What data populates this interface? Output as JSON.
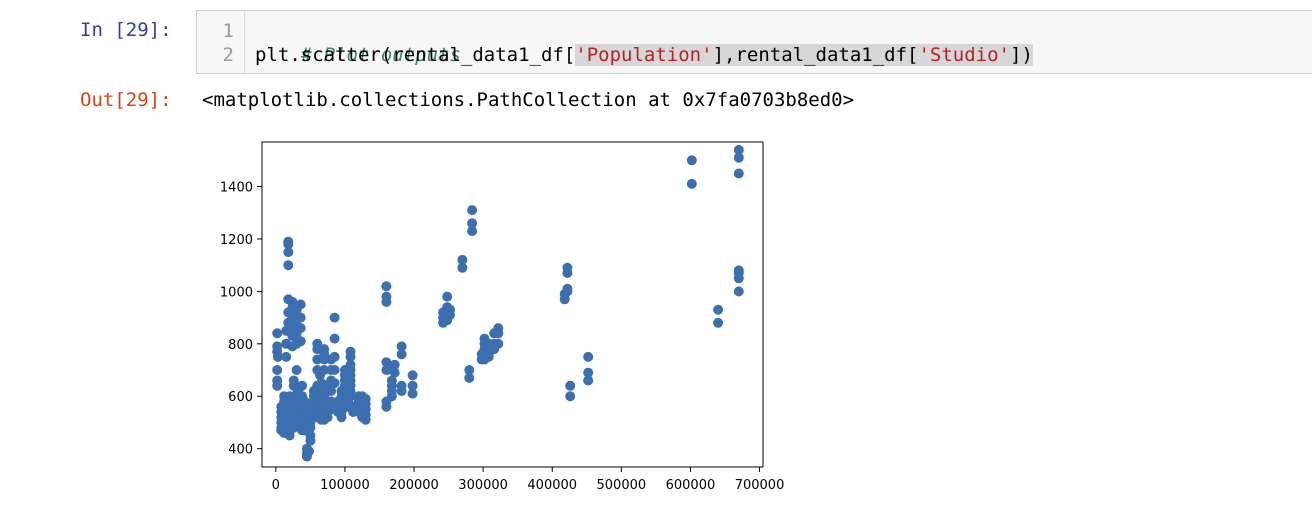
{
  "input_cell": {
    "prompt": "In [29]:",
    "lines": [
      {
        "number": "1",
        "comment": "# Plot outputs"
      },
      {
        "number": "2",
        "parts": [
          "plt.scatter(rental_data1_df[",
          "'Population'",
          "],rental_data1_df[",
          "'Studio'",
          "])"
        ]
      }
    ]
  },
  "output_cell": {
    "prompt": "Out[29]:",
    "text": "<matplotlib.collections.PathCollection at 0x7fa0703b8ed0>"
  },
  "colors": {
    "marker": "#3b6fb0",
    "string": "#ba2121",
    "comment": "#408080"
  },
  "chart_data": {
    "type": "scatter",
    "title": "",
    "xlabel": "",
    "ylabel": "",
    "xlim": [
      -20000,
      705000
    ],
    "ylim": [
      330,
      1570
    ],
    "xticks": [
      0,
      100000,
      200000,
      300000,
      400000,
      500000,
      600000,
      700000
    ],
    "yticks": [
      400,
      600,
      800,
      1000,
      1200,
      1400
    ],
    "grid": false,
    "points": [
      [
        2000,
        840
      ],
      [
        2000,
        790
      ],
      [
        2000,
        770
      ],
      [
        2000,
        700
      ],
      [
        2000,
        660
      ],
      [
        2000,
        640
      ],
      [
        3000,
        750
      ],
      [
        8000,
        560
      ],
      [
        8000,
        540
      ],
      [
        8000,
        520
      ],
      [
        8000,
        500
      ],
      [
        8000,
        480
      ],
      [
        8000,
        470
      ],
      [
        12000,
        600
      ],
      [
        12000,
        580
      ],
      [
        12000,
        560
      ],
      [
        12000,
        540
      ],
      [
        12000,
        520
      ],
      [
        12000,
        500
      ],
      [
        12000,
        480
      ],
      [
        12000,
        460
      ],
      [
        15000,
        850
      ],
      [
        15000,
        800
      ],
      [
        15000,
        750
      ],
      [
        18000,
        1190
      ],
      [
        18000,
        1180
      ],
      [
        18000,
        1150
      ],
      [
        18000,
        1100
      ],
      [
        18000,
        970
      ],
      [
        18000,
        920
      ],
      [
        18000,
        880
      ],
      [
        18000,
        850
      ],
      [
        20000,
        600
      ],
      [
        20000,
        570
      ],
      [
        20000,
        550
      ],
      [
        20000,
        520
      ],
      [
        20000,
        500
      ],
      [
        20000,
        470
      ],
      [
        20000,
        450
      ],
      [
        24000,
        960
      ],
      [
        24000,
        940
      ],
      [
        24000,
        900
      ],
      [
        24000,
        870
      ],
      [
        24000,
        830
      ],
      [
        24000,
        790
      ],
      [
        26000,
        660
      ],
      [
        26000,
        640
      ],
      [
        26000,
        600
      ],
      [
        26000,
        580
      ],
      [
        26000,
        540
      ],
      [
        26000,
        520
      ],
      [
        26000,
        500
      ],
      [
        26000,
        480
      ],
      [
        30000,
        930
      ],
      [
        30000,
        910
      ],
      [
        30000,
        870
      ],
      [
        30000,
        840
      ],
      [
        30000,
        800
      ],
      [
        30000,
        700
      ],
      [
        32000,
        620
      ],
      [
        32000,
        590
      ],
      [
        32000,
        570
      ],
      [
        32000,
        540
      ],
      [
        32000,
        510
      ],
      [
        32000,
        490
      ],
      [
        36000,
        950
      ],
      [
        36000,
        900
      ],
      [
        36000,
        860
      ],
      [
        36000,
        810
      ],
      [
        38000,
        640
      ],
      [
        38000,
        600
      ],
      [
        38000,
        560
      ],
      [
        38000,
        530
      ],
      [
        38000,
        500
      ],
      [
        38000,
        470
      ],
      [
        42000,
        580
      ],
      [
        42000,
        550
      ],
      [
        42000,
        520
      ],
      [
        42000,
        490
      ],
      [
        42000,
        470
      ],
      [
        45000,
        400
      ],
      [
        45000,
        380
      ],
      [
        45000,
        370
      ],
      [
        48000,
        390
      ],
      [
        50000,
        560
      ],
      [
        50000,
        540
      ],
      [
        50000,
        520
      ],
      [
        50000,
        500
      ],
      [
        50000,
        480
      ],
      [
        50000,
        450
      ],
      [
        50000,
        430
      ],
      [
        55000,
        620
      ],
      [
        55000,
        600
      ],
      [
        55000,
        580
      ],
      [
        55000,
        560
      ],
      [
        55000,
        540
      ],
      [
        55000,
        520
      ],
      [
        60000,
        800
      ],
      [
        60000,
        780
      ],
      [
        60000,
        740
      ],
      [
        60000,
        700
      ],
      [
        60000,
        640
      ],
      [
        60000,
        600
      ],
      [
        60000,
        580
      ],
      [
        60000,
        560
      ],
      [
        60000,
        540
      ],
      [
        60000,
        520
      ],
      [
        64000,
        680
      ],
      [
        64000,
        640
      ],
      [
        64000,
        600
      ],
      [
        64000,
        560
      ],
      [
        64000,
        530
      ],
      [
        66000,
        650
      ],
      [
        66000,
        620
      ],
      [
        66000,
        580
      ],
      [
        66000,
        540
      ],
      [
        66000,
        510
      ],
      [
        70000,
        780
      ],
      [
        70000,
        760
      ],
      [
        70000,
        740
      ],
      [
        70000,
        700
      ],
      [
        70000,
        620
      ],
      [
        70000,
        600
      ],
      [
        70000,
        580
      ],
      [
        70000,
        560
      ],
      [
        70000,
        530
      ],
      [
        70000,
        510
      ],
      [
        75000,
        640
      ],
      [
        75000,
        620
      ],
      [
        75000,
        580
      ],
      [
        75000,
        560
      ],
      [
        75000,
        540
      ],
      [
        75000,
        520
      ],
      [
        80000,
        740
      ],
      [
        80000,
        700
      ],
      [
        80000,
        660
      ],
      [
        80000,
        620
      ],
      [
        80000,
        580
      ],
      [
        80000,
        550
      ],
      [
        85000,
        900
      ],
      [
        85000,
        820
      ],
      [
        85000,
        750
      ],
      [
        85000,
        700
      ],
      [
        85000,
        650
      ],
      [
        90000,
        580
      ],
      [
        90000,
        560
      ],
      [
        90000,
        540
      ],
      [
        95000,
        620
      ],
      [
        95000,
        600
      ],
      [
        95000,
        580
      ],
      [
        95000,
        560
      ],
      [
        95000,
        540
      ],
      [
        95000,
        520
      ],
      [
        100000,
        700
      ],
      [
        100000,
        680
      ],
      [
        100000,
        660
      ],
      [
        100000,
        640
      ],
      [
        100000,
        620
      ],
      [
        100000,
        580
      ],
      [
        100000,
        560
      ],
      [
        105000,
        660
      ],
      [
        105000,
        620
      ],
      [
        105000,
        600
      ],
      [
        105000,
        580
      ],
      [
        105000,
        560
      ],
      [
        108000,
        770
      ],
      [
        108000,
        750
      ],
      [
        108000,
        720
      ],
      [
        108000,
        700
      ],
      [
        108000,
        680
      ],
      [
        108000,
        660
      ],
      [
        108000,
        640
      ],
      [
        108000,
        620
      ],
      [
        108000,
        600
      ],
      [
        112000,
        560
      ],
      [
        112000,
        540
      ],
      [
        120000,
        600
      ],
      [
        120000,
        580
      ],
      [
        120000,
        560
      ],
      [
        120000,
        540
      ],
      [
        125000,
        600
      ],
      [
        125000,
        580
      ],
      [
        125000,
        560
      ],
      [
        125000,
        540
      ],
      [
        125000,
        520
      ],
      [
        130000,
        590
      ],
      [
        130000,
        570
      ],
      [
        130000,
        550
      ],
      [
        130000,
        530
      ],
      [
        130000,
        510
      ],
      [
        160000,
        1020
      ],
      [
        160000,
        980
      ],
      [
        160000,
        960
      ],
      [
        160000,
        730
      ],
      [
        160000,
        700
      ],
      [
        160000,
        580
      ],
      [
        160000,
        560
      ],
      [
        168000,
        700
      ],
      [
        168000,
        660
      ],
      [
        168000,
        640
      ],
      [
        168000,
        620
      ],
      [
        168000,
        600
      ],
      [
        172000,
        720
      ],
      [
        172000,
        690
      ],
      [
        182000,
        790
      ],
      [
        182000,
        760
      ],
      [
        182000,
        640
      ],
      [
        182000,
        620
      ],
      [
        198000,
        680
      ],
      [
        198000,
        640
      ],
      [
        198000,
        610
      ],
      [
        242000,
        920
      ],
      [
        242000,
        900
      ],
      [
        242000,
        880
      ],
      [
        248000,
        980
      ],
      [
        248000,
        940
      ],
      [
        248000,
        920
      ],
      [
        248000,
        900
      ],
      [
        248000,
        890
      ],
      [
        252000,
        930
      ],
      [
        252000,
        910
      ],
      [
        270000,
        1120
      ],
      [
        270000,
        1090
      ],
      [
        280000,
        700
      ],
      [
        280000,
        670
      ],
      [
        284000,
        1310
      ],
      [
        284000,
        1260
      ],
      [
        284000,
        1230
      ],
      [
        298000,
        760
      ],
      [
        298000,
        740
      ],
      [
        302000,
        820
      ],
      [
        302000,
        800
      ],
      [
        302000,
        780
      ],
      [
        302000,
        760
      ],
      [
        302000,
        740
      ],
      [
        308000,
        800
      ],
      [
        308000,
        780
      ],
      [
        308000,
        760
      ],
      [
        308000,
        750
      ],
      [
        316000,
        840
      ],
      [
        316000,
        800
      ],
      [
        316000,
        780
      ],
      [
        322000,
        860
      ],
      [
        322000,
        840
      ],
      [
        322000,
        800
      ],
      [
        418000,
        990
      ],
      [
        418000,
        970
      ],
      [
        422000,
        1090
      ],
      [
        422000,
        1070
      ],
      [
        422000,
        1010
      ],
      [
        422000,
        1000
      ],
      [
        426000,
        640
      ],
      [
        426000,
        600
      ],
      [
        452000,
        750
      ],
      [
        452000,
        690
      ],
      [
        452000,
        660
      ],
      [
        602000,
        1500
      ],
      [
        602000,
        1410
      ],
      [
        640000,
        930
      ],
      [
        640000,
        880
      ],
      [
        670000,
        1540
      ],
      [
        670000,
        1510
      ],
      [
        670000,
        1450
      ],
      [
        670000,
        1080
      ],
      [
        670000,
        1070
      ],
      [
        670000,
        1050
      ],
      [
        670000,
        1000
      ]
    ]
  }
}
